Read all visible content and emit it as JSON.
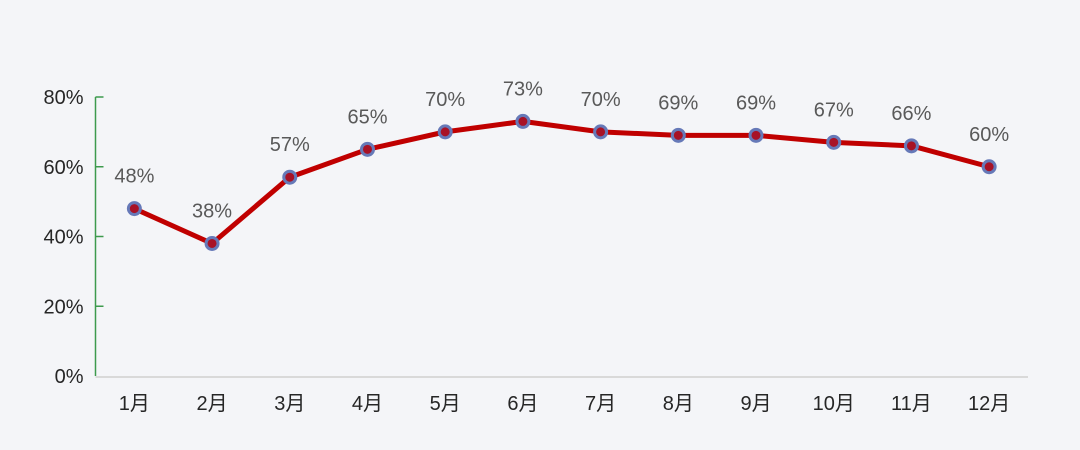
{
  "chart_data": {
    "type": "line",
    "title": "",
    "xlabel": "",
    "ylabel": "",
    "categories": [
      "1月",
      "2月",
      "3月",
      "4月",
      "5月",
      "6月",
      "7月",
      "8月",
      "9月",
      "10月",
      "11月",
      "12月"
    ],
    "series": [
      {
        "name": "monthly-percentage",
        "values": [
          48,
          38,
          57,
          65,
          70,
          73,
          70,
          69,
          69,
          67,
          66,
          60
        ]
      }
    ],
    "data_labels": [
      "48%",
      "38%",
      "57%",
      "65%",
      "70%",
      "73%",
      "70%",
      "69%",
      "69%",
      "67%",
      "66%",
      "60%"
    ],
    "ylim": [
      0,
      80
    ],
    "y_ticks": [
      {
        "value": 80,
        "label": "80%"
      },
      {
        "value": 60,
        "label": "60%"
      },
      {
        "value": 40,
        "label": "40%"
      },
      {
        "value": 20,
        "label": "20%"
      },
      {
        "value": 0,
        "label": "0%"
      }
    ],
    "grid": false,
    "legend": "none",
    "colors": {
      "background": "#f4f5f8",
      "line": "#c00000",
      "marker_fill": "#a81226",
      "marker_border": "#6679b8",
      "y_axis": "#3d9a4d",
      "x_axis": "#d9d9d9",
      "axis_label": "#262626",
      "data_label": "#595959"
    }
  }
}
